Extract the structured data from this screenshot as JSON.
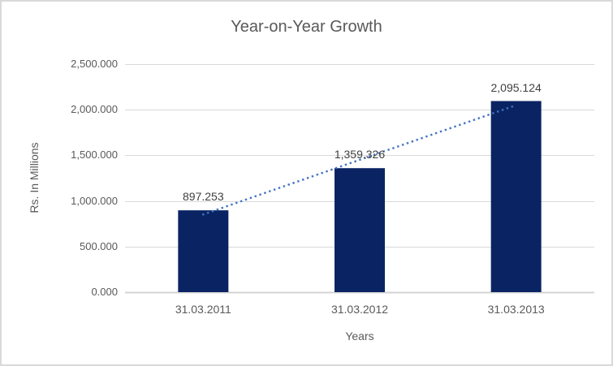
{
  "chart_data": {
    "type": "bar",
    "title": "Year-on-Year Growth",
    "xlabel": "Years",
    "ylabel": "Rs. In Millions",
    "categories": [
      "31.03.2011",
      "31.03.2012",
      "31.03.2013"
    ],
    "values": [
      897.253,
      1359.326,
      2095.124
    ],
    "value_labels": [
      "897.253",
      "1,359.326",
      "2,095.124"
    ],
    "y_ticks": [
      "0.000",
      "500.000",
      "1,000.000",
      "1,500.000",
      "2,000.000",
      "2,500.000"
    ],
    "y_tick_values": [
      0,
      500,
      1000,
      1500,
      2000,
      2500
    ],
    "ylim": [
      0,
      2500
    ],
    "grid": true,
    "legend": "none",
    "trendline": {
      "type": "linear",
      "style": "dotted"
    },
    "colors": {
      "bar": "#0a2463",
      "trendline": "#4472c4",
      "gridline": "#d9d9d9",
      "axis_line": "#d3d3d3",
      "text": "#595959",
      "data_label": "#404040",
      "background": "#ffffff",
      "border": "#d9d9d9"
    }
  }
}
